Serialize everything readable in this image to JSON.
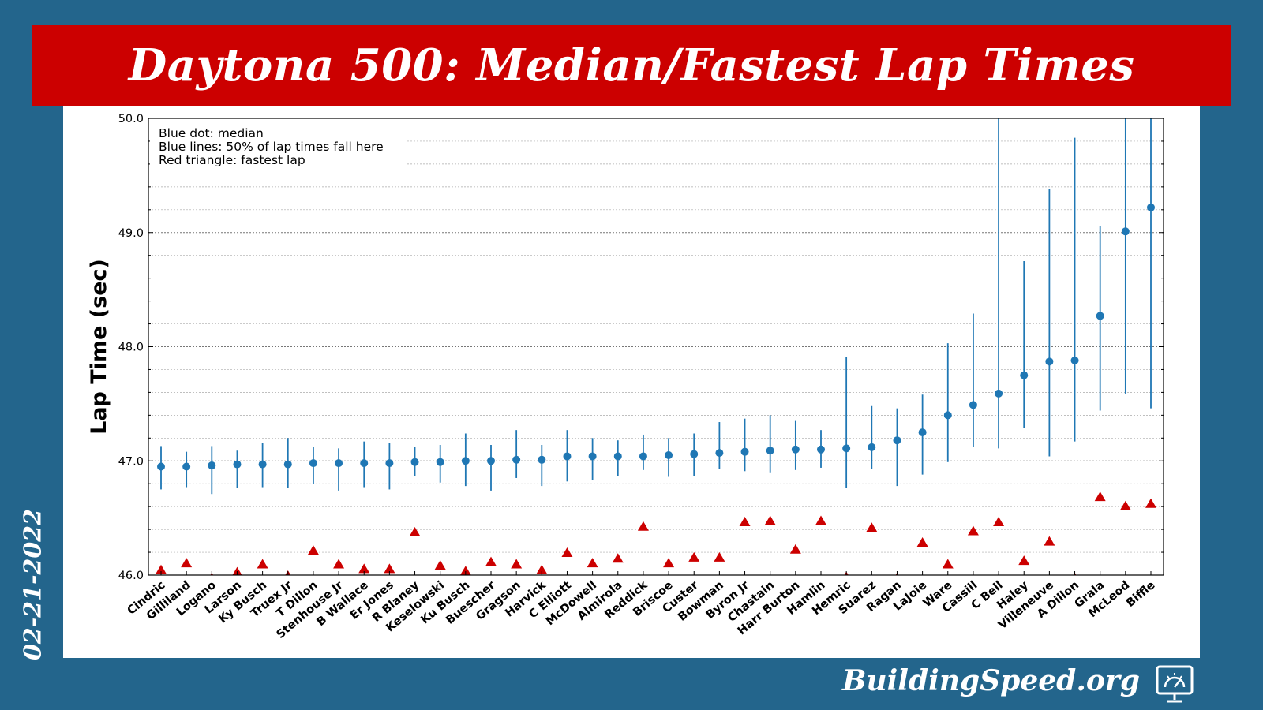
{
  "header": {
    "title": "Daytona 500: Median/Fastest Lap Times"
  },
  "footer": {
    "date": "02-21-2022",
    "brand": "BuildingSpeed.org",
    "brand_icon": "speedometer-monitor-icon"
  },
  "colors": {
    "background": "#23658c",
    "banner": "#cc0000",
    "median": "#1f77b4",
    "fastest": "#cc0000"
  },
  "chart_data": {
    "type": "errorbar",
    "ylabel": "Lap Time (sec)",
    "ylim": [
      46.0,
      50.0
    ],
    "yticks": [
      "46.0",
      "47.0",
      "48.0",
      "49.0",
      "50.0"
    ],
    "legend": [
      "Blue dot: median",
      "Blue lines: 50% of lap times fall here",
      "Red triangle: fastest lap"
    ],
    "categories": [
      "Cindric",
      "Gilliland",
      "Logano",
      "Larson",
      "Ky Busch",
      "Truex Jr",
      "T Dillon",
      "Stenhouse Jr",
      "B Wallace",
      "Er Jones",
      "R Blaney",
      "Keselowski",
      "Ku Busch",
      "Buescher",
      "Gragson",
      "Harvick",
      "C Elliott",
      "McDowell",
      "Almirola",
      "Reddick",
      "Briscoe",
      "Custer",
      "Bowman",
      "Byron Jr",
      "Chastain",
      "Harr Burton",
      "Hamlin",
      "Hemric",
      "Suarez",
      "Ragan",
      "LaJoie",
      "Ware",
      "Cassill",
      "C Bell",
      "Haley",
      "Villeneuve",
      "A Dillon",
      "Grala",
      "McLeod",
      "Biffle"
    ],
    "series": [
      {
        "name": "median",
        "values": [
          46.95,
          46.95,
          46.96,
          46.97,
          46.97,
          46.97,
          46.98,
          46.98,
          46.98,
          46.98,
          46.99,
          46.99,
          47.0,
          47.0,
          47.01,
          47.01,
          47.04,
          47.04,
          47.04,
          47.04,
          47.05,
          47.06,
          47.07,
          47.08,
          47.09,
          47.1,
          47.1,
          47.11,
          47.12,
          47.18,
          47.25,
          47.4,
          47.49,
          47.59,
          47.75,
          47.87,
          47.88,
          48.27,
          49.01,
          49.22
        ]
      },
      {
        "name": "q1",
        "values": [
          46.75,
          46.77,
          46.71,
          46.76,
          46.77,
          46.76,
          46.8,
          46.74,
          46.77,
          46.75,
          46.87,
          46.81,
          46.78,
          46.74,
          46.85,
          46.78,
          46.82,
          46.83,
          46.87,
          46.92,
          46.86,
          46.87,
          46.93,
          46.91,
          46.9,
          46.92,
          46.94,
          46.76,
          46.93,
          46.78,
          46.88,
          46.99,
          47.12,
          47.11,
          47.29,
          47.04,
          47.17,
          47.44,
          47.59,
          47.46
        ]
      },
      {
        "name": "q3",
        "values": [
          47.13,
          47.08,
          47.13,
          47.09,
          47.16,
          47.2,
          47.12,
          47.11,
          47.17,
          47.16,
          47.12,
          47.14,
          47.24,
          47.14,
          47.27,
          47.14,
          47.27,
          47.2,
          47.18,
          47.23,
          47.2,
          47.24,
          47.34,
          47.37,
          47.4,
          47.35,
          47.27,
          47.91,
          47.48,
          47.46,
          47.58,
          48.03,
          48.29,
          50.0,
          48.75,
          49.38,
          49.83,
          49.06,
          50.0,
          50.0
        ]
      },
      {
        "name": "fastest",
        "values": [
          46.05,
          46.11,
          45.98,
          46.03,
          46.1,
          46.0,
          46.22,
          46.1,
          46.06,
          46.06,
          46.38,
          46.09,
          46.04,
          46.12,
          46.1,
          46.05,
          46.2,
          46.11,
          46.15,
          46.43,
          46.11,
          46.16,
          46.16,
          46.47,
          46.48,
          46.23,
          46.48,
          45.99,
          46.42,
          45.98,
          46.29,
          46.1,
          46.39,
          46.47,
          46.13,
          46.3,
          45.98,
          46.69,
          46.61,
          46.63
        ]
      }
    ]
  }
}
